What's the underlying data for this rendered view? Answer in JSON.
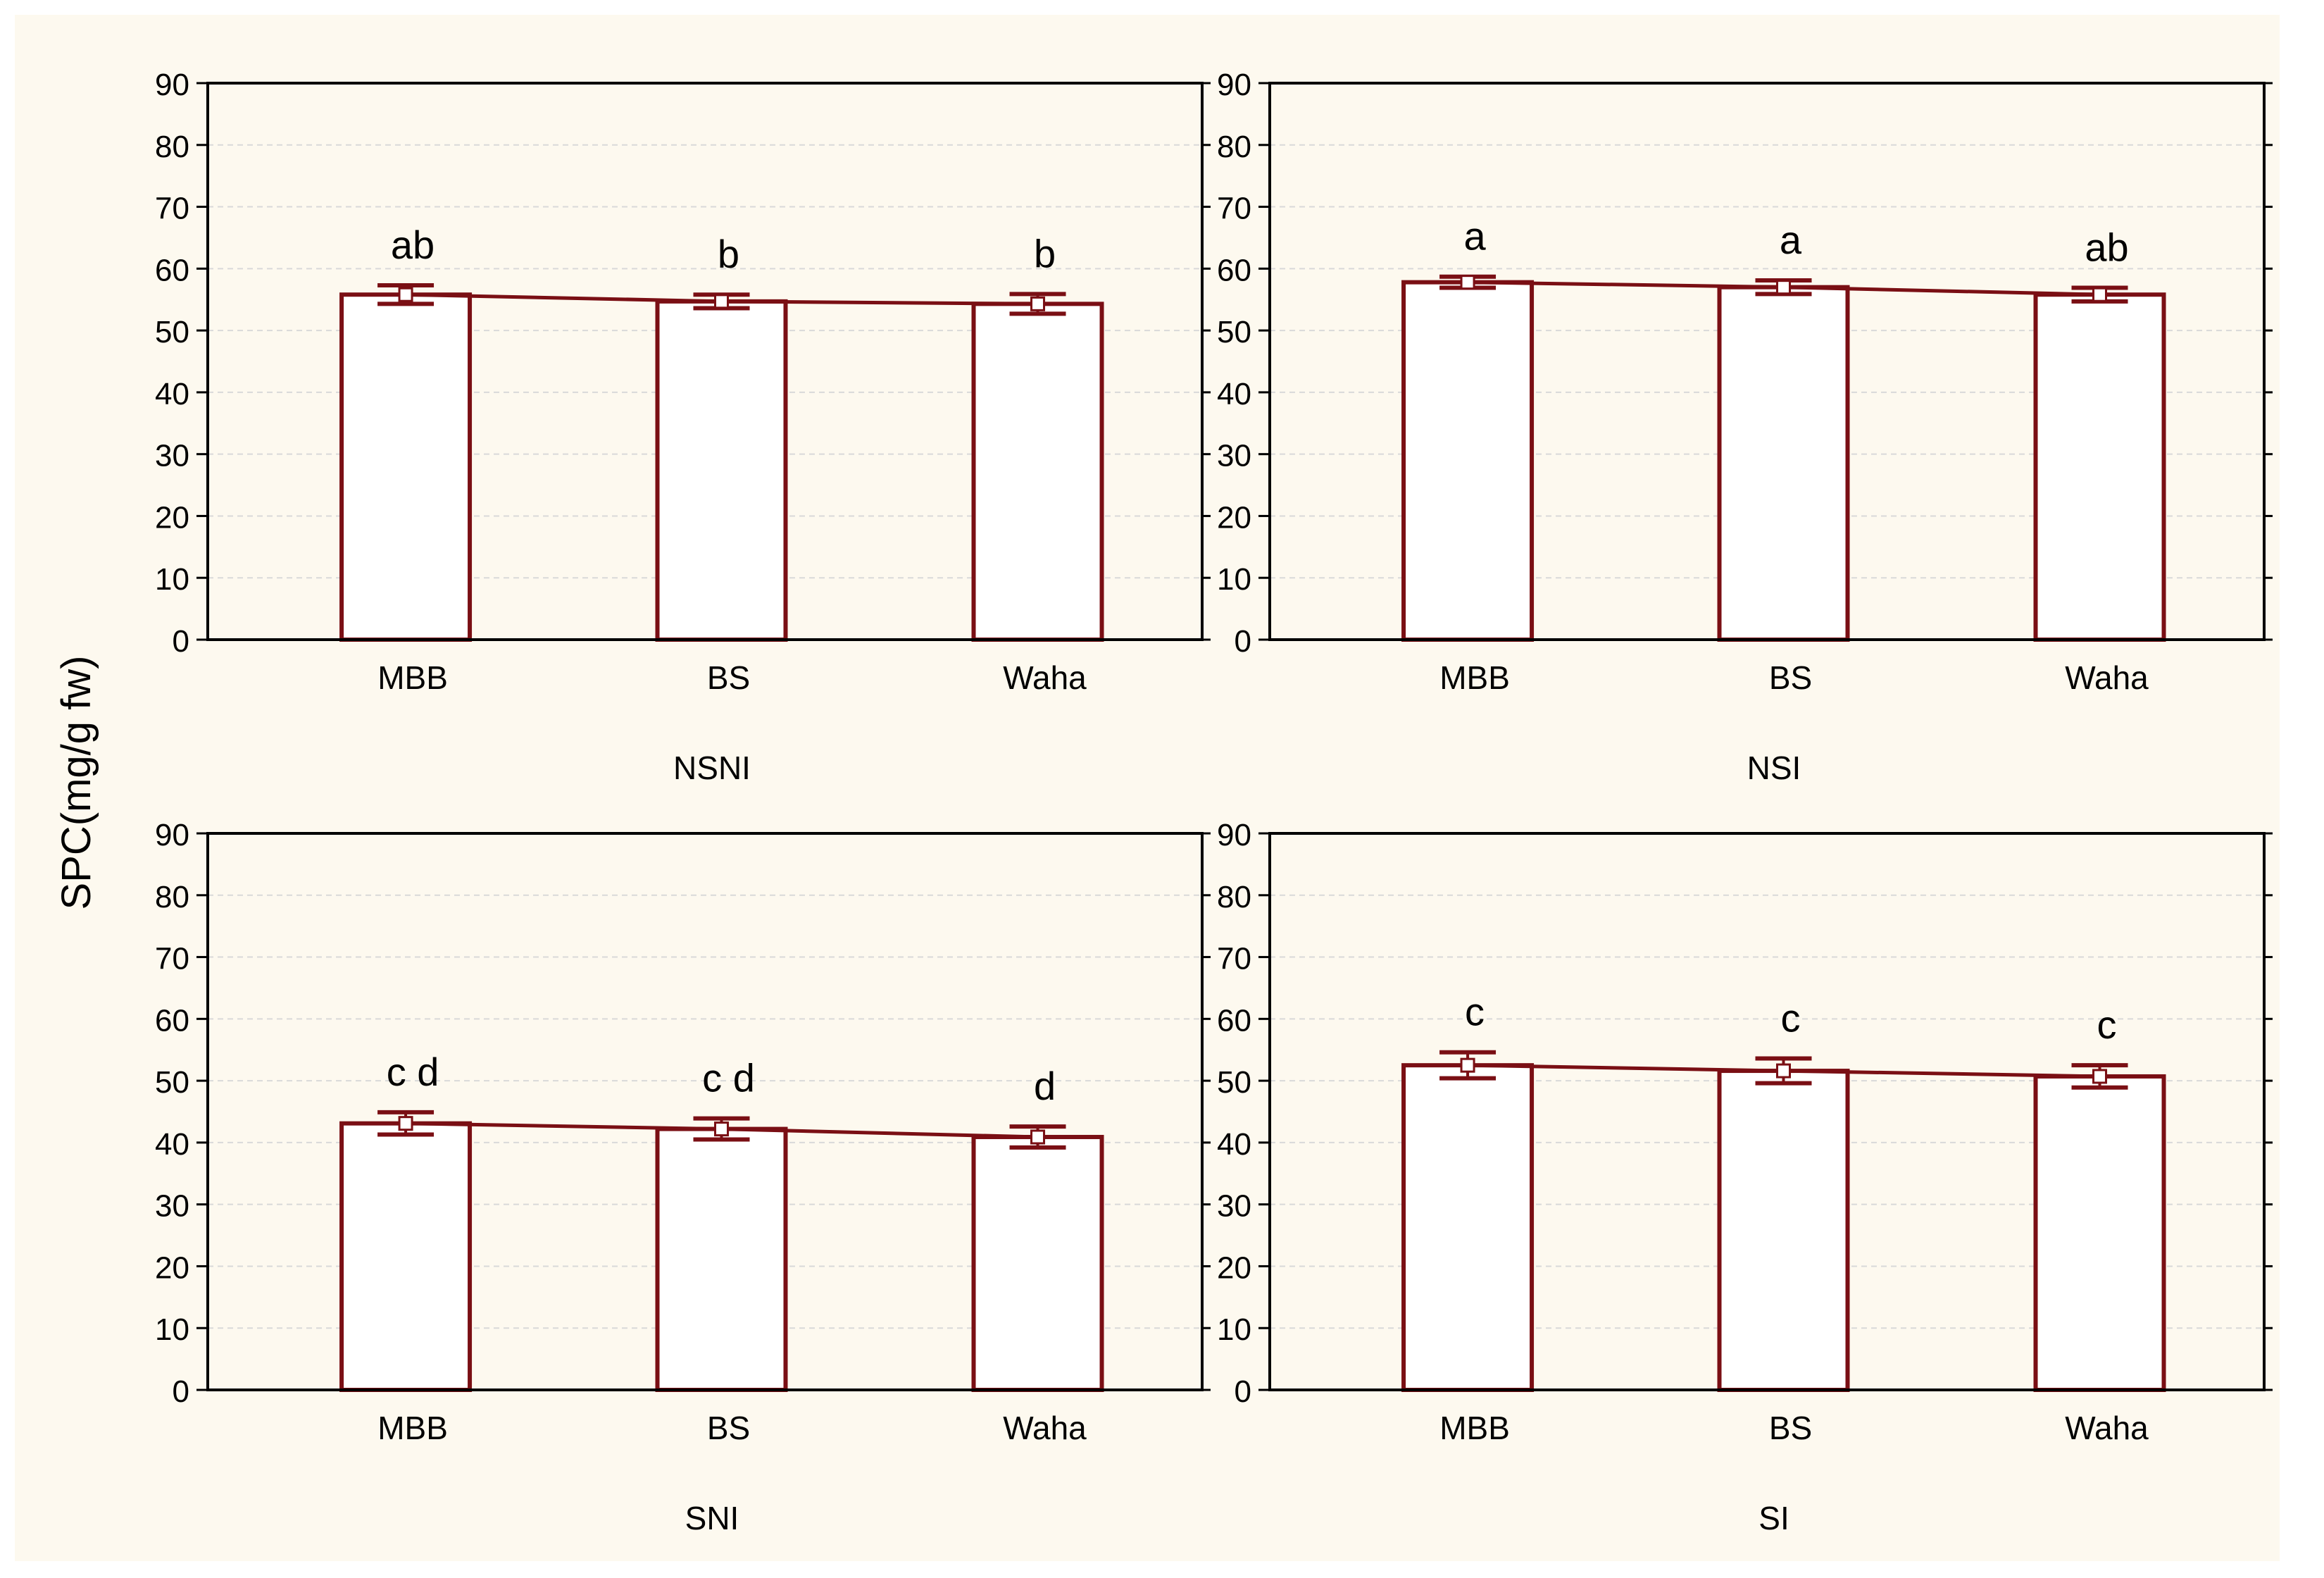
{
  "y_axis_label": "SPC(mg/g fw)",
  "chart_data": [
    {
      "type": "bar",
      "xlabel": "NSNI",
      "ylabel": "SPC(mg/g fw)",
      "categories": [
        "MBB",
        "BS",
        "Waha"
      ],
      "values": [
        55.8,
        54.7,
        54.3
      ],
      "error_high": [
        57.3,
        55.8,
        55.9
      ],
      "error_low": [
        54.3,
        53.6,
        52.7
      ],
      "letters": [
        "ab",
        "b",
        "b"
      ],
      "ylim": [
        0,
        90
      ],
      "yticks": [
        "0",
        "10",
        "20",
        "30",
        "40",
        "50",
        "60",
        "70",
        "80",
        "90"
      ],
      "grid": true
    },
    {
      "type": "bar",
      "xlabel": "NSI",
      "ylabel": "SPC(mg/g fw)",
      "categories": [
        "MBB",
        "BS",
        "Waha"
      ],
      "values": [
        57.8,
        57.0,
        55.8
      ],
      "error_high": [
        58.7,
        58.1,
        56.9
      ],
      "error_low": [
        56.9,
        55.9,
        54.7
      ],
      "letters": [
        "a",
        "a",
        "ab"
      ],
      "ylim": [
        0,
        90
      ],
      "yticks": [
        "0",
        "10",
        "20",
        "30",
        "40",
        "50",
        "60",
        "70",
        "80",
        "90"
      ],
      "grid": true
    },
    {
      "type": "bar",
      "xlabel": "SNI",
      "ylabel": "SPC(mg/g fw)",
      "categories": [
        "MBB",
        "BS",
        "Waha"
      ],
      "values": [
        43.1,
        42.2,
        40.9
      ],
      "error_high": [
        44.9,
        43.9,
        42.6
      ],
      "error_low": [
        41.3,
        40.5,
        39.2
      ],
      "letters": [
        "c d",
        "c d",
        "d"
      ],
      "ylim": [
        0,
        90
      ],
      "yticks": [
        "0",
        "10",
        "20",
        "30",
        "40",
        "50",
        "60",
        "70",
        "80",
        "90"
      ],
      "grid": true
    },
    {
      "type": "bar",
      "xlabel": "SI",
      "ylabel": "SPC(mg/g fw)",
      "categories": [
        "MBB",
        "BS",
        "Waha"
      ],
      "values": [
        52.5,
        51.6,
        50.7
      ],
      "error_high": [
        54.6,
        53.6,
        52.5
      ],
      "error_low": [
        50.4,
        49.6,
        48.9
      ],
      "letters": [
        "c",
        "c",
        "c"
      ],
      "ylim": [
        0,
        90
      ],
      "yticks": [
        "0",
        "10",
        "20",
        "30",
        "40",
        "50",
        "60",
        "70",
        "80",
        "90"
      ],
      "grid": true
    }
  ],
  "colors": {
    "bar_edge": "#7a0f14",
    "bar_fill": "#ffffff",
    "background": "#fdf9ef",
    "grid": "#d9d9d9",
    "axis": "#000000"
  }
}
